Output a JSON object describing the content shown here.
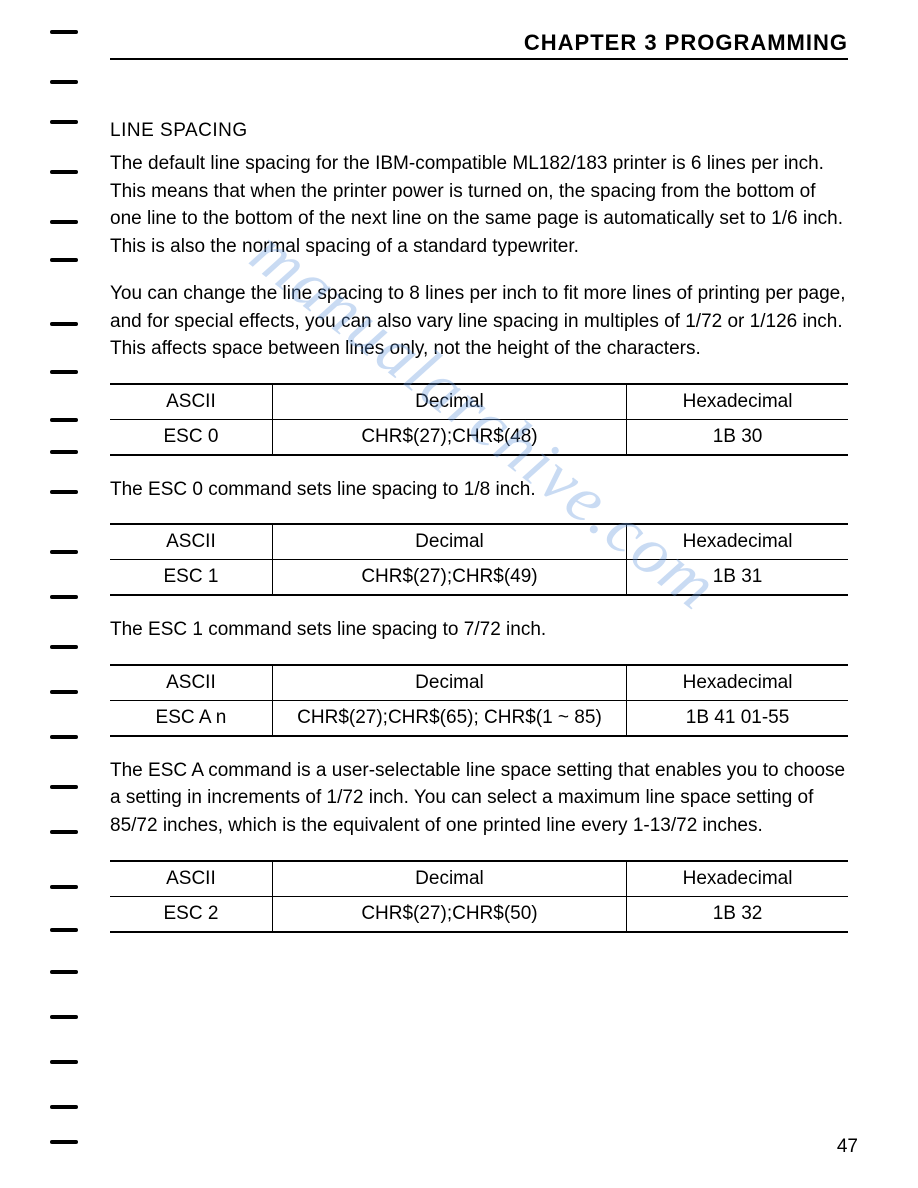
{
  "chapterHeader": "CHAPTER 3  PROGRAMMING",
  "sectionTitle": "LINE SPACING",
  "paragraph1": "The default line spacing for the IBM-compatible ML182/183 printer is 6 lines per inch. This means that when the printer power is turned on, the spacing from the bottom of one line to the bottom of the next line on the same page is automatically set to 1/6 inch. This is also the normal spacing of a standard typewriter.",
  "paragraph2": "You can change the line spacing to 8 lines per inch to fit more lines of printing per page, and for special effects, you can also vary line spacing in multiples of 1/72 or 1/126 inch. This affects space between lines only, not the height of the characters.",
  "tableHeaders": {
    "ascii": "ASCII",
    "decimal": "Decimal",
    "hex": "Hexadecimal"
  },
  "table1": {
    "ascii": "ESC 0",
    "decimal": "CHR$(27);CHR$(48)",
    "hex": "1B 30"
  },
  "paragraph3": "The ESC 0 command sets line spacing to 1/8 inch.",
  "table2": {
    "ascii": "ESC 1",
    "decimal": "CHR$(27);CHR$(49)",
    "hex": "1B 31"
  },
  "paragraph4": "The ESC 1 command sets line spacing to 7/72 inch.",
  "table3": {
    "ascii": "ESC A n",
    "decimal": "CHR$(27);CHR$(65); CHR$(1 ~ 85)",
    "hex": "1B 41 01-55"
  },
  "paragraph5": "The ESC A command is a user-selectable line space setting that enables you to choose a setting in increments of 1/72 inch. You can select a maximum line space setting of 85/72 inches, which is the equivalent of one printed line every 1-13/72 inches.",
  "table4": {
    "ascii": "ESC 2",
    "decimal": "CHR$(27);CHR$(50)",
    "hex": "1B 32"
  },
  "pageNumber": "47",
  "watermark": "manualarchive.com",
  "marks": [
    0,
    50,
    90,
    140,
    190,
    228,
    292,
    340,
    388,
    420,
    460,
    520,
    565,
    615,
    660,
    705,
    755,
    800,
    855,
    898,
    940,
    985,
    1030,
    1075,
    1110
  ]
}
